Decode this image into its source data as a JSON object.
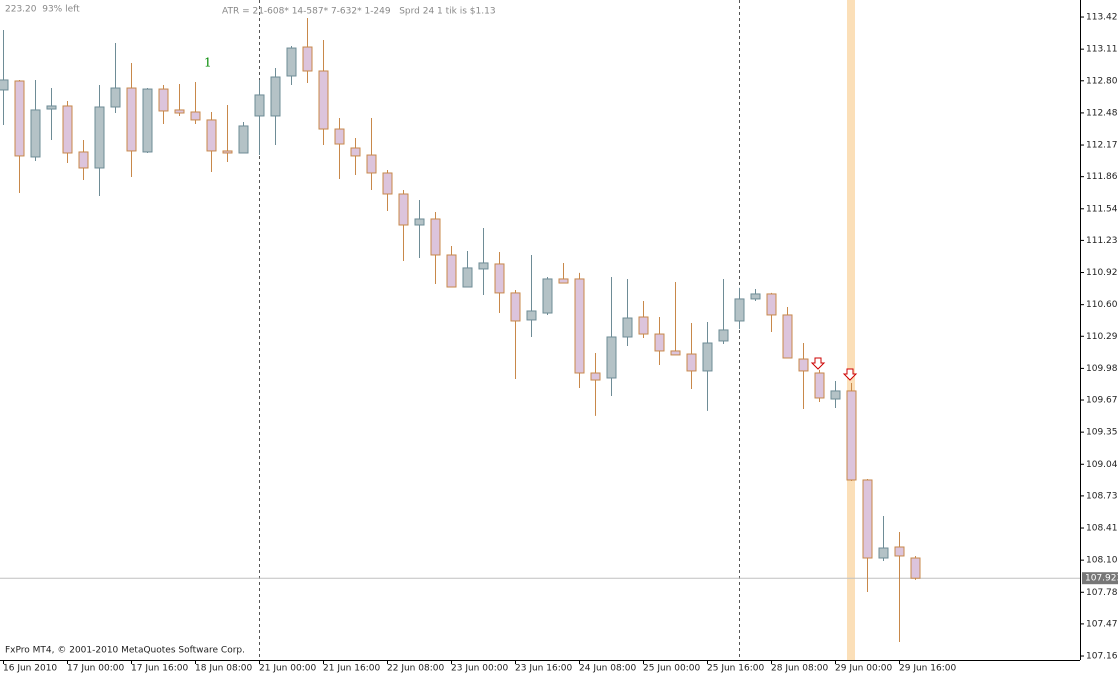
{
  "chart_data": {
    "type": "candlestick",
    "status_text": "223.20  93% left",
    "header_text": "ATR = 21-608* 14-587* 7-632* 1-249   Sprd 24 1 tik is $1.13",
    "annotation": "1",
    "footer_text": "FxPro MT4, © 2001-2010 MetaQuotes Software Corp.",
    "categories": [
      "16 Jun 2010",
      null,
      null,
      null,
      "17 Jun 00:00",
      null,
      null,
      null,
      "17 Jun 16:00",
      null,
      null,
      null,
      "18 Jun 08:00",
      null,
      null,
      null,
      "21 Jun 00:00",
      null,
      null,
      null,
      "21 Jun 16:00",
      null,
      null,
      null,
      "22 Jun 08:00",
      null,
      null,
      null,
      "23 Jun 00:00",
      null,
      null,
      null,
      "23 Jun 16:00",
      null,
      null,
      null,
      "24 Jun 08:00",
      null,
      null,
      null,
      "25 Jun 00:00",
      null,
      null,
      null,
      "25 Jun 16:00",
      null,
      null,
      null,
      "28 Jun 08:00",
      null,
      null,
      null,
      "29 Jun 00:00",
      null,
      null,
      null,
      "29 Jun 16:00",
      null
    ],
    "open": [
      112.71,
      112.798,
      112.053,
      112.523,
      112.553,
      112.102,
      111.945,
      112.543,
      112.729,
      112.102,
      112.719,
      112.514,
      112.494,
      112.416,
      112.112,
      112.092,
      112.455,
      112.455,
      112.847,
      113.131,
      112.896,
      112.327,
      112.141,
      112.072,
      111.896,
      111.69,
      111.386,
      111.445,
      111.092,
      110.778,
      110.955,
      111.004,
      110.72,
      110.455,
      110.523,
      110.857,
      110.857,
      109.935,
      109.886,
      110.288,
      110.484,
      110.317,
      110.151,
      110.121,
      109.955,
      110.249,
      110.445,
      110.661,
      110.71,
      110.504,
      110.072,
      109.935,
      109.68,
      109.759,
      108.886,
      108.121,
      108.229,
      108.121
    ],
    "high": [
      113.298,
      112.808,
      112.808,
      112.729,
      112.602,
      112.219,
      112.759,
      113.17,
      112.974,
      112.729,
      112.759,
      112.768,
      112.788,
      112.494,
      112.563,
      112.396,
      112.808,
      112.925,
      113.141,
      113.416,
      113.2,
      112.435,
      112.239,
      112.435,
      111.925,
      111.729,
      111.631,
      111.514,
      111.18,
      111.131,
      111.357,
      111.121,
      110.749,
      111.092,
      110.876,
      111.014,
      110.916,
      110.131,
      110.876,
      110.857,
      110.641,
      110.484,
      110.827,
      110.425,
      110.435,
      110.857,
      110.769,
      110.759,
      110.72,
      110.582,
      110.229,
      109.965,
      109.857,
      109.837,
      108.896,
      108.533,
      108.376,
      108.141
    ],
    "low": [
      112.367,
      111.7,
      112.014,
      112.219,
      111.994,
      111.827,
      111.67,
      112.484,
      111.857,
      112.092,
      112.376,
      112.455,
      112.376,
      111.906,
      112.004,
      112.092,
      112.072,
      112.17,
      112.759,
      112.778,
      112.17,
      111.837,
      111.876,
      111.729,
      111.523,
      111.033,
      111.063,
      110.808,
      110.778,
      110.778,
      110.7,
      110.523,
      109.876,
      110.288,
      110.504,
      110.817,
      109.788,
      109.514,
      109.71,
      110.2,
      110.278,
      110.013,
      110.112,
      109.778,
      109.563,
      110.219,
      110.366,
      110.641,
      110.337,
      110.082,
      109.582,
      109.651,
      109.592,
      108.876,
      107.788,
      108.092,
      107.298,
      107.906
    ],
    "close": [
      112.808,
      112.063,
      112.514,
      112.553,
      112.092,
      111.945,
      112.543,
      112.729,
      112.112,
      112.719,
      112.504,
      112.484,
      112.416,
      112.112,
      112.092,
      112.357,
      112.661,
      112.837,
      113.121,
      112.896,
      112.327,
      112.18,
      112.063,
      111.896,
      111.69,
      111.386,
      111.445,
      111.092,
      110.778,
      110.965,
      111.014,
      110.72,
      110.445,
      110.543,
      110.857,
      110.817,
      109.935,
      109.866,
      110.288,
      110.474,
      110.317,
      110.151,
      110.112,
      109.955,
      110.229,
      110.357,
      110.661,
      110.71,
      110.504,
      110.082,
      109.955,
      109.69,
      109.759,
      108.886,
      108.121,
      108.219,
      108.141,
      107.923
    ],
    "up_color": "#b4c2c6",
    "up_border": "#6e8c96",
    "down_color": "#dcc4dc",
    "down_border": "#c8884a",
    "last_price": 107.923,
    "ylim": [
      107.121,
      113.592
    ],
    "yticks": [
      113.425,
      {
        "value": 113.11,
        "label": "113.110"
      },
      {
        "value": 112.8,
        "label": "112.800"
      },
      112.485,
      {
        "value": 112.17,
        "label": "112.170"
      },
      {
        "value": 111.86,
        "label": "111.860"
      },
      111.545,
      111.235,
      {
        "value": 110.92,
        "label": "110.920"
      },
      110.605,
      110.295,
      {
        "value": 109.98,
        "label": "109.980"
      },
      {
        "value": 109.67,
        "label": "109.670"
      },
      109.355,
      {
        "value": 109.04,
        "label": "109.040"
      },
      {
        "value": 108.73,
        "label": "108.730"
      },
      108.415,
      {
        "value": 108.1,
        "label": "108.100"
      },
      107.785,
      107.475,
      {
        "value": 107.16,
        "label": "107.160"
      }
    ]
  }
}
